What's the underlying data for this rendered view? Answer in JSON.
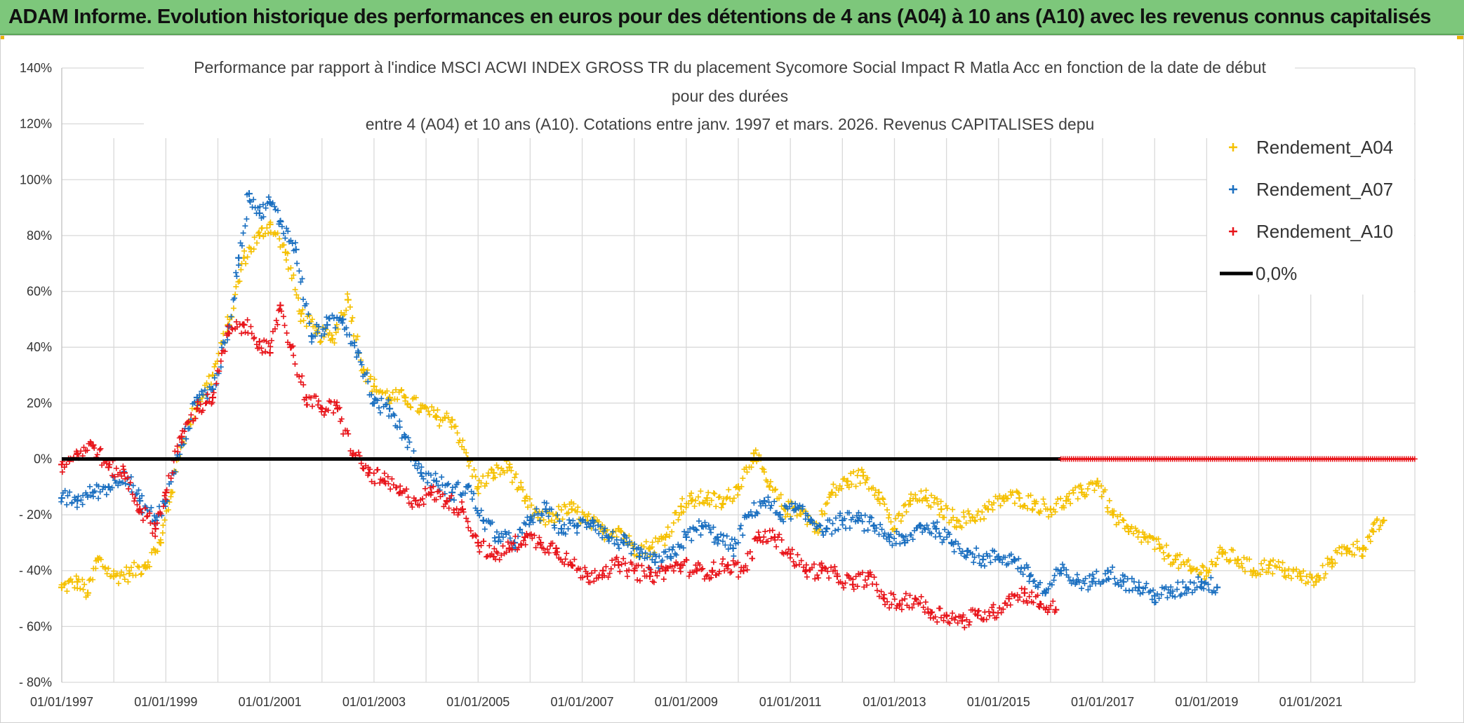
{
  "header": {
    "title": "ADAM Informe. Evolution historique des performances en euros pour des détentions de 4 ans (A04) à 10 ans (A10) avec les revenus connus capitalisés"
  },
  "colors": {
    "banner": "#7dc77b",
    "a04": "#f5c000",
    "a07": "#1a6fc0",
    "a10": "#e8141a",
    "zero": "#000000",
    "grid": "#d9d9d9"
  },
  "chart_data": {
    "type": "scatter",
    "title_lines": [
      "Performance par rapport à l'indice MSCI ACWI INDEX GROSS TR  du placement Sycomore Social Impact R Matla Acc en fonction de la date de début",
      "pour des durées",
      "entre 4 (A04) et 10 ans (A10). Cotations entre janv. 1997 et mars. 2026. Revenus CAPITALISES depu"
    ],
    "xlabel": "",
    "ylabel": "",
    "x_range": [
      1997.0,
      2023.0
    ],
    "ylim": [
      -80,
      140
    ],
    "y_ticks": [
      140,
      120,
      100,
      80,
      60,
      40,
      20,
      0,
      -20,
      -40,
      -60,
      -80
    ],
    "y_tick_labels": [
      "140%",
      "120%",
      "100%",
      "80%",
      "60%",
      "40%",
      "20%",
      "0%",
      "- 20%",
      "- 40%",
      "- 60%",
      "- 80%"
    ],
    "x_ticks": [
      1997,
      1999,
      2001,
      2003,
      2005,
      2007,
      2009,
      2011,
      2013,
      2015,
      2017,
      2019,
      2021
    ],
    "x_tick_labels": [
      "01/01/1997",
      "01/01/1999",
      "01/01/2001",
      "01/01/2003",
      "01/01/2005",
      "01/01/2007",
      "01/01/2009",
      "01/01/2011",
      "01/01/2013",
      "01/01/2015",
      "01/01/2017",
      "01/01/2019",
      "01/01/2021"
    ],
    "legend_position": "top-right",
    "series": [
      {
        "name": "Rendement_A04",
        "color": "#f5c000",
        "x": [
          1997.0,
          1997.3,
          1997.5,
          1997.7,
          1998.0,
          1998.3,
          1998.6,
          1998.9,
          1999.1,
          1999.3,
          1999.6,
          1999.9,
          2000.2,
          2000.5,
          2000.8,
          2001.0,
          2001.3,
          2001.6,
          2001.9,
          2002.2,
          2002.5,
          2002.8,
          2003.0,
          2003.3,
          2003.6,
          2003.9,
          2004.2,
          2004.5,
          2004.8,
          2005.0,
          2005.3,
          2005.6,
          2005.9,
          2006.2,
          2006.5,
          2006.8,
          2007.1,
          2007.4,
          2007.7,
          2008.0,
          2008.3,
          2008.6,
          2008.9,
          2009.1,
          2009.4,
          2009.7,
          2010.0,
          2010.3,
          2010.6,
          2010.9,
          2011.2,
          2011.5,
          2011.8,
          2012.1,
          2012.4,
          2012.7,
          2013.0,
          2013.3,
          2013.6,
          2013.9,
          2014.2,
          2014.5,
          2014.8,
          2015.1,
          2015.4,
          2015.7,
          2016.0,
          2016.3,
          2016.6,
          2016.9,
          2017.2,
          2017.5,
          2017.8,
          2018.1,
          2018.4,
          2018.7,
          2019.0,
          2019.3,
          2019.6,
          2019.9,
          2020.2,
          2020.5,
          2020.8,
          2021.1,
          2021.4,
          2021.7,
          2022.0,
          2022.2,
          2022.4
        ],
        "y": [
          -46,
          -44,
          -48,
          -36,
          -42,
          -41,
          -38,
          -30,
          -12,
          5,
          20,
          30,
          48,
          72,
          80,
          84,
          74,
          52,
          45,
          43,
          57,
          32,
          26,
          22,
          22,
          18,
          15,
          14,
          0,
          -10,
          -5,
          -3,
          -15,
          -22,
          -20,
          -18,
          -22,
          -26,
          -25,
          -32,
          -32,
          -28,
          -17,
          -15,
          -14,
          -16,
          -10,
          2,
          -10,
          -18,
          -18,
          -25,
          -12,
          -8,
          -6,
          -12,
          -25,
          -15,
          -14,
          -18,
          -22,
          -21,
          -18,
          -14,
          -14,
          -16,
          -18,
          -15,
          -12,
          -8,
          -20,
          -26,
          -28,
          -32,
          -36,
          -40,
          -40,
          -34,
          -36,
          -40,
          -38,
          -40,
          -42,
          -44,
          -36,
          -32,
          -32,
          -26,
          -22
        ]
      },
      {
        "name": "Rendement_A07",
        "color": "#1a6fc0",
        "x": [
          1997.0,
          1997.3,
          1997.6,
          1997.9,
          1998.2,
          1998.5,
          1998.8,
          1999.0,
          1999.3,
          1999.6,
          1999.9,
          2000.2,
          2000.4,
          2000.6,
          2000.8,
          2001.0,
          2001.2,
          2001.5,
          2001.8,
          2002.1,
          2002.4,
          2002.7,
          2003.0,
          2003.3,
          2003.6,
          2003.9,
          2004.2,
          2004.5,
          2004.8,
          2005.1,
          2005.4,
          2005.7,
          2006.0,
          2006.3,
          2006.6,
          2006.9,
          2007.2,
          2007.5,
          2007.8,
          2008.1,
          2008.4,
          2008.7,
          2009.0,
          2009.3,
          2009.6,
          2009.9,
          2010.2,
          2010.5,
          2010.8,
          2011.1,
          2011.4,
          2011.7,
          2012.0,
          2012.3,
          2012.6,
          2012.9,
          2013.2,
          2013.5,
          2013.8,
          2014.1,
          2014.4,
          2014.7,
          2015.0,
          2015.3,
          2015.6,
          2015.9,
          2016.2,
          2016.5,
          2016.8,
          2017.1,
          2017.4,
          2017.7,
          2018.0,
          2018.3,
          2018.6,
          2018.9,
          2019.2
        ],
        "y": [
          -14,
          -15,
          -12,
          -10,
          -5,
          -15,
          -22,
          -15,
          5,
          22,
          25,
          45,
          72,
          95,
          88,
          92,
          85,
          75,
          44,
          48,
          50,
          38,
          20,
          18,
          8,
          -5,
          -8,
          -12,
          -10,
          -22,
          -28,
          -30,
          -22,
          -18,
          -25,
          -24,
          -22,
          -28,
          -30,
          -35,
          -37,
          -35,
          -28,
          -24,
          -28,
          -32,
          -20,
          -15,
          -20,
          -18,
          -22,
          -25,
          -22,
          -22,
          -24,
          -28,
          -30,
          -24,
          -25,
          -30,
          -33,
          -36,
          -35,
          -36,
          -42,
          -48,
          -40,
          -44,
          -44,
          -40,
          -44,
          -46,
          -49,
          -48,
          -46,
          -44,
          -46
        ]
      },
      {
        "name": "Rendement_A10",
        "color": "#e8141a",
        "x": [
          1997.0,
          1997.3,
          1997.6,
          1997.9,
          1998.2,
          1998.5,
          1998.8,
          1999.0,
          1999.3,
          1999.6,
          1999.9,
          2000.2,
          2000.5,
          2000.8,
          2001.0,
          2001.2,
          2001.4,
          2001.7,
          2002.0,
          2002.3,
          2002.6,
          2002.9,
          2003.2,
          2003.5,
          2003.8,
          2004.1,
          2004.4,
          2004.7,
          2005.0,
          2005.3,
          2005.6,
          2005.9,
          2006.2,
          2006.5,
          2006.8,
          2007.1,
          2007.4,
          2007.7,
          2008.0,
          2008.3,
          2008.6,
          2008.9,
          2009.2,
          2009.5,
          2009.8,
          2010.1,
          2010.4,
          2010.7,
          2011.0,
          2011.3,
          2011.6,
          2011.9,
          2012.2,
          2012.5,
          2012.8,
          2013.1,
          2013.4,
          2013.7,
          2014.0,
          2014.3,
          2014.6,
          2014.9,
          2015.2,
          2015.5,
          2015.8,
          2016.1
        ],
        "y": [
          -2,
          2,
          5,
          -3,
          -5,
          -18,
          -25,
          -12,
          8,
          18,
          22,
          45,
          48,
          42,
          38,
          55,
          40,
          22,
          18,
          18,
          2,
          -5,
          -8,
          -12,
          -15,
          -12,
          -15,
          -18,
          -30,
          -35,
          -32,
          -28,
          -30,
          -32,
          -38,
          -42,
          -40,
          -38,
          -40,
          -42,
          -40,
          -38,
          -40,
          -40,
          -38,
          -40,
          -28,
          -28,
          -34,
          -40,
          -40,
          -42,
          -45,
          -42,
          -50,
          -52,
          -50,
          -55,
          -56,
          -58,
          -56,
          -55,
          -50,
          -48,
          -52,
          -54
        ]
      },
      {
        "name": "Rendement_A10",
        "note": "zero segment",
        "color": "#e8141a",
        "x": [
          2016.2,
          2023.0
        ],
        "y": [
          0,
          0
        ]
      }
    ],
    "reference_line": {
      "name": "0,0%",
      "value": 0,
      "color": "#000000"
    }
  }
}
